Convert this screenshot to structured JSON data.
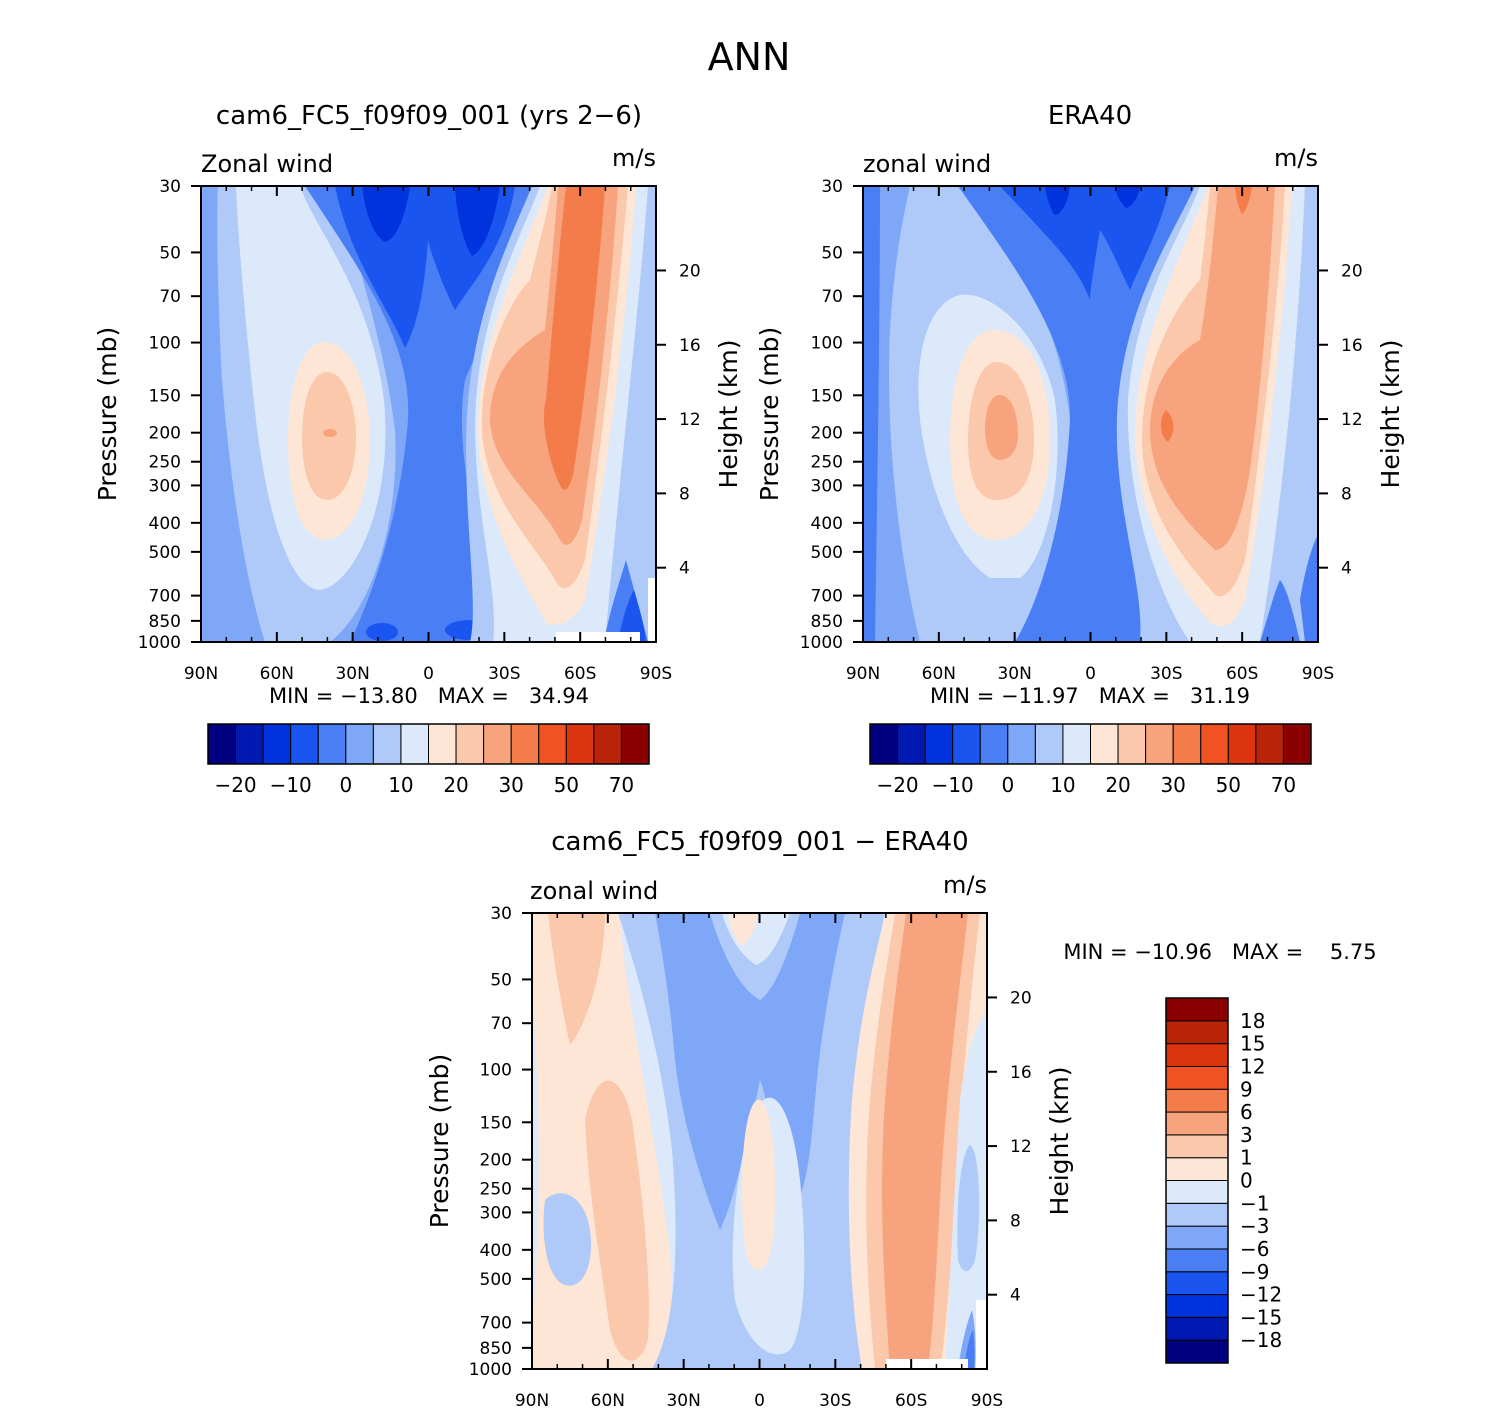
{
  "figure": {
    "title": "ANN",
    "palette_zonal": [
      "#000080",
      "#0019b0",
      "#0033dd",
      "#1a55f0",
      "#4a7ef5",
      "#7ea7f8",
      "#afcaf9",
      "#dbe9fb",
      "#fde6d5",
      "#fcc8ab",
      "#f7a47e",
      "#f47c4b",
      "#f15224",
      "#db3510",
      "#b92408",
      "#8a0000"
    ],
    "palette_diff": [
      "#000080",
      "#0019b0",
      "#0033dd",
      "#1a55f0",
      "#4a7ef5",
      "#7ea7f8",
      "#afcaf9",
      "#dbe9fb",
      "#fde6d5",
      "#fcc8ab",
      "#f7a47e",
      "#f47c4b",
      "#f15224",
      "#db3510",
      "#b92408",
      "#8a0000"
    ]
  },
  "chart_data": [
    {
      "type": "heatmap",
      "id": "panel-model",
      "title": "cam6_FC5_f09f09_001 (yrs 2−6)",
      "left_label": "Zonal wind",
      "right_label": "m/s",
      "xlabel": "",
      "ylabel": "Pressure (mb)",
      "ylabel_right": "Height (km)",
      "x_ticks": [
        "90N",
        "60N",
        "30N",
        "0",
        "30S",
        "60S",
        "90S"
      ],
      "x_range": [
        90,
        -90
      ],
      "y_ticks": [
        30,
        50,
        70,
        100,
        150,
        200,
        250,
        300,
        400,
        500,
        700,
        850,
        1000
      ],
      "y_range": [
        1000,
        30
      ],
      "y_scale": "log",
      "height_ticks": [
        4,
        8,
        12,
        16,
        20
      ],
      "stats": "MIN = −13.80   MAX =   34.94",
      "min": -13.8,
      "max": 34.94,
      "features": [
        {
          "lat": -58,
          "p": 200,
          "value": 33,
          "desc": "SH westerly jet"
        },
        {
          "lat": 38,
          "p": 200,
          "value": 21,
          "desc": "NH westerly jet"
        },
        {
          "lat": 20,
          "p": 30,
          "value": -13,
          "desc": "tropical stratospheric easterlies"
        }
      ],
      "colorbar": {
        "labels": [
          "−20",
          "−10",
          "0",
          "10",
          "20",
          "30",
          "50",
          "70"
        ],
        "levels": [
          -25,
          -20,
          -15,
          -10,
          -5,
          0,
          5,
          10,
          15,
          20,
          25,
          30,
          40,
          50,
          60,
          70
        ]
      }
    },
    {
      "type": "heatmap",
      "id": "panel-obs",
      "title": "ERA40",
      "left_label": "zonal wind",
      "right_label": "m/s",
      "xlabel": "",
      "ylabel": "Pressure (mb)",
      "ylabel_right": "Height (km)",
      "x_ticks": [
        "90N",
        "60N",
        "30N",
        "0",
        "30S",
        "60S",
        "90S"
      ],
      "x_range": [
        90,
        -90
      ],
      "y_ticks": [
        30,
        50,
        70,
        100,
        150,
        200,
        250,
        300,
        400,
        500,
        700,
        850,
        1000
      ],
      "y_range": [
        1000,
        30
      ],
      "y_scale": "log",
      "height_ticks": [
        4,
        8,
        12,
        16,
        20
      ],
      "stats": "MIN = −11.97   MAX =   31.19",
      "min": -11.97,
      "max": 31.19,
      "features": [
        {
          "lat": -30,
          "p": 200,
          "value": 31,
          "desc": "SH westerly jet"
        },
        {
          "lat": 37,
          "p": 200,
          "value": 25,
          "desc": "NH westerly jet"
        },
        {
          "lat": -60,
          "p": 30,
          "value": 30,
          "desc": "SH polar night jet"
        }
      ],
      "colorbar": {
        "labels": [
          "−20",
          "−10",
          "0",
          "10",
          "20",
          "30",
          "50",
          "70"
        ],
        "levels": [
          -25,
          -20,
          -15,
          -10,
          -5,
          0,
          5,
          10,
          15,
          20,
          25,
          30,
          40,
          50,
          60,
          70
        ]
      }
    },
    {
      "type": "heatmap",
      "id": "panel-diff",
      "title": "cam6_FC5_f09f09_001 − ERA40",
      "left_label": "zonal wind",
      "right_label": "m/s",
      "xlabel": "",
      "ylabel": "Pressure (mb)",
      "ylabel_right": "Height (km)",
      "x_ticks": [
        "90N",
        "60N",
        "30N",
        "0",
        "30S",
        "60S",
        "90S"
      ],
      "x_range": [
        90,
        -90
      ],
      "y_ticks": [
        30,
        50,
        70,
        100,
        150,
        200,
        250,
        300,
        400,
        500,
        700,
        850,
        1000
      ],
      "y_range": [
        1000,
        30
      ],
      "y_scale": "log",
      "height_ticks": [
        4,
        8,
        12,
        16,
        20
      ],
      "stats": "MIN = −10.96   MAX =    5.75",
      "min": -10.96,
      "max": 5.75,
      "features": [
        {
          "lat": -60,
          "p": 200,
          "value": 5,
          "desc": "positive bias near 60S"
        },
        {
          "lat": 15,
          "p": 200,
          "value": -7,
          "desc": "negative bias in tropics"
        }
      ],
      "colorbar": {
        "labels": [
          "18",
          "15",
          "12",
          "9",
          "6",
          "3",
          "1",
          "0",
          "−1",
          "−3",
          "−6",
          "−9",
          "−12",
          "−15",
          "−18"
        ],
        "levels": [
          -21,
          -18,
          -15,
          -12,
          -9,
          -6,
          -3,
          -1,
          0,
          1,
          3,
          6,
          9,
          12,
          15,
          18,
          21
        ]
      }
    }
  ]
}
